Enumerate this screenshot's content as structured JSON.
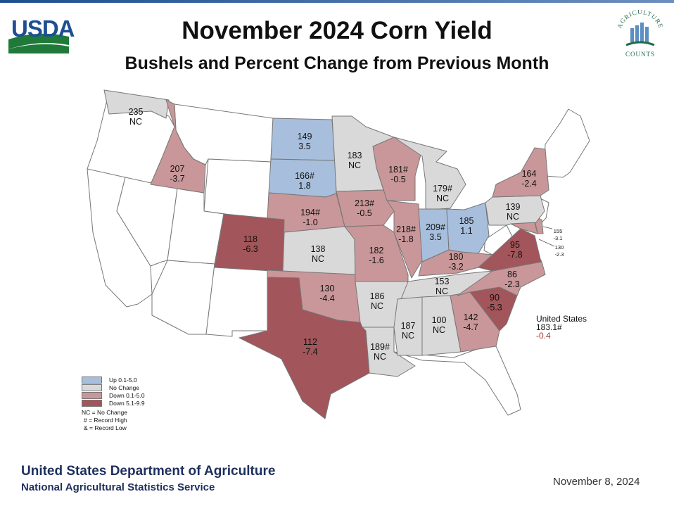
{
  "title": "November 2024 Corn Yield",
  "subtitle": "Bushels and Percent Change from Previous Month",
  "logos": {
    "usda": "USDA",
    "ag_counts_arc": "AGRICULTURE",
    "ag_counts_bottom": "COUNTS"
  },
  "colors": {
    "up": "#a7bfdc",
    "nochange": "#d9d9d9",
    "down_small": "#c99799",
    "down_large": "#a2555a",
    "nonreport": "#ffffff"
  },
  "legend": {
    "items": [
      {
        "label": "Up 0.1-5.0",
        "color": "#a7bfdc"
      },
      {
        "label": "No Change",
        "color": "#d9d9d9"
      },
      {
        "label": "Down 0.1-5.0",
        "color": "#c99799"
      },
      {
        "label": "Down 5.1-9.9",
        "color": "#a2555a"
      }
    ],
    "notes": [
      "NC = No Change",
      "# = Record High",
      "& = Record Low"
    ]
  },
  "states": {
    "WA": {
      "yield": "235",
      "change": "NC"
    },
    "ID": {
      "yield": "207",
      "change": "-3.7"
    },
    "ND": {
      "yield": "149",
      "change": "3.5"
    },
    "SD": {
      "yield": "166#",
      "change": "1.8"
    },
    "MN": {
      "yield": "183",
      "change": "NC"
    },
    "WI": {
      "yield": "181#",
      "change": "-0.5"
    },
    "MI": {
      "yield": "179#",
      "change": "NC"
    },
    "NY": {
      "yield": "164",
      "change": "-2.4"
    },
    "PA": {
      "yield": "139",
      "change": "NC"
    },
    "NE": {
      "yield": "194#",
      "change": "-1.0"
    },
    "IA": {
      "yield": "213#",
      "change": "-0.5"
    },
    "IL": {
      "yield": "218#",
      "change": "-1.8"
    },
    "IN": {
      "yield": "209#",
      "change": "3.5"
    },
    "OH": {
      "yield": "185",
      "change": "1.1"
    },
    "CO": {
      "yield": "118",
      "change": "-6.3"
    },
    "KS": {
      "yield": "138",
      "change": "NC"
    },
    "MO": {
      "yield": "182",
      "change": "-1.6"
    },
    "KY": {
      "yield": "180",
      "change": "-3.2"
    },
    "VA": {
      "yield": "95",
      "change": "-7.8"
    },
    "DE": {
      "yield": "155",
      "change": "-3.1"
    },
    "MD": {
      "yield": "130",
      "change": "-2.3"
    },
    "NC": {
      "yield": "86",
      "change": "-2.3"
    },
    "TN": {
      "yield": "153",
      "change": "NC"
    },
    "OK": {
      "yield": "130",
      "change": "-4.4"
    },
    "AR": {
      "yield": "186",
      "change": "NC"
    },
    "SC": {
      "yield": "90",
      "change": "-5.3"
    },
    "GA": {
      "yield": "142",
      "change": "-4.7"
    },
    "AL": {
      "yield": "100",
      "change": "NC"
    },
    "MS": {
      "yield": "187",
      "change": "NC"
    },
    "LA": {
      "yield": "189#",
      "change": "NC"
    },
    "TX": {
      "yield": "112",
      "change": "-7.4"
    }
  },
  "us_total": {
    "name": "United States",
    "yield": "183.1#",
    "change": "-0.4"
  },
  "footer": {
    "agency": "United States Department of Agriculture",
    "service": "National Agricultural Statistics Service",
    "date": "November 8, 2024"
  }
}
